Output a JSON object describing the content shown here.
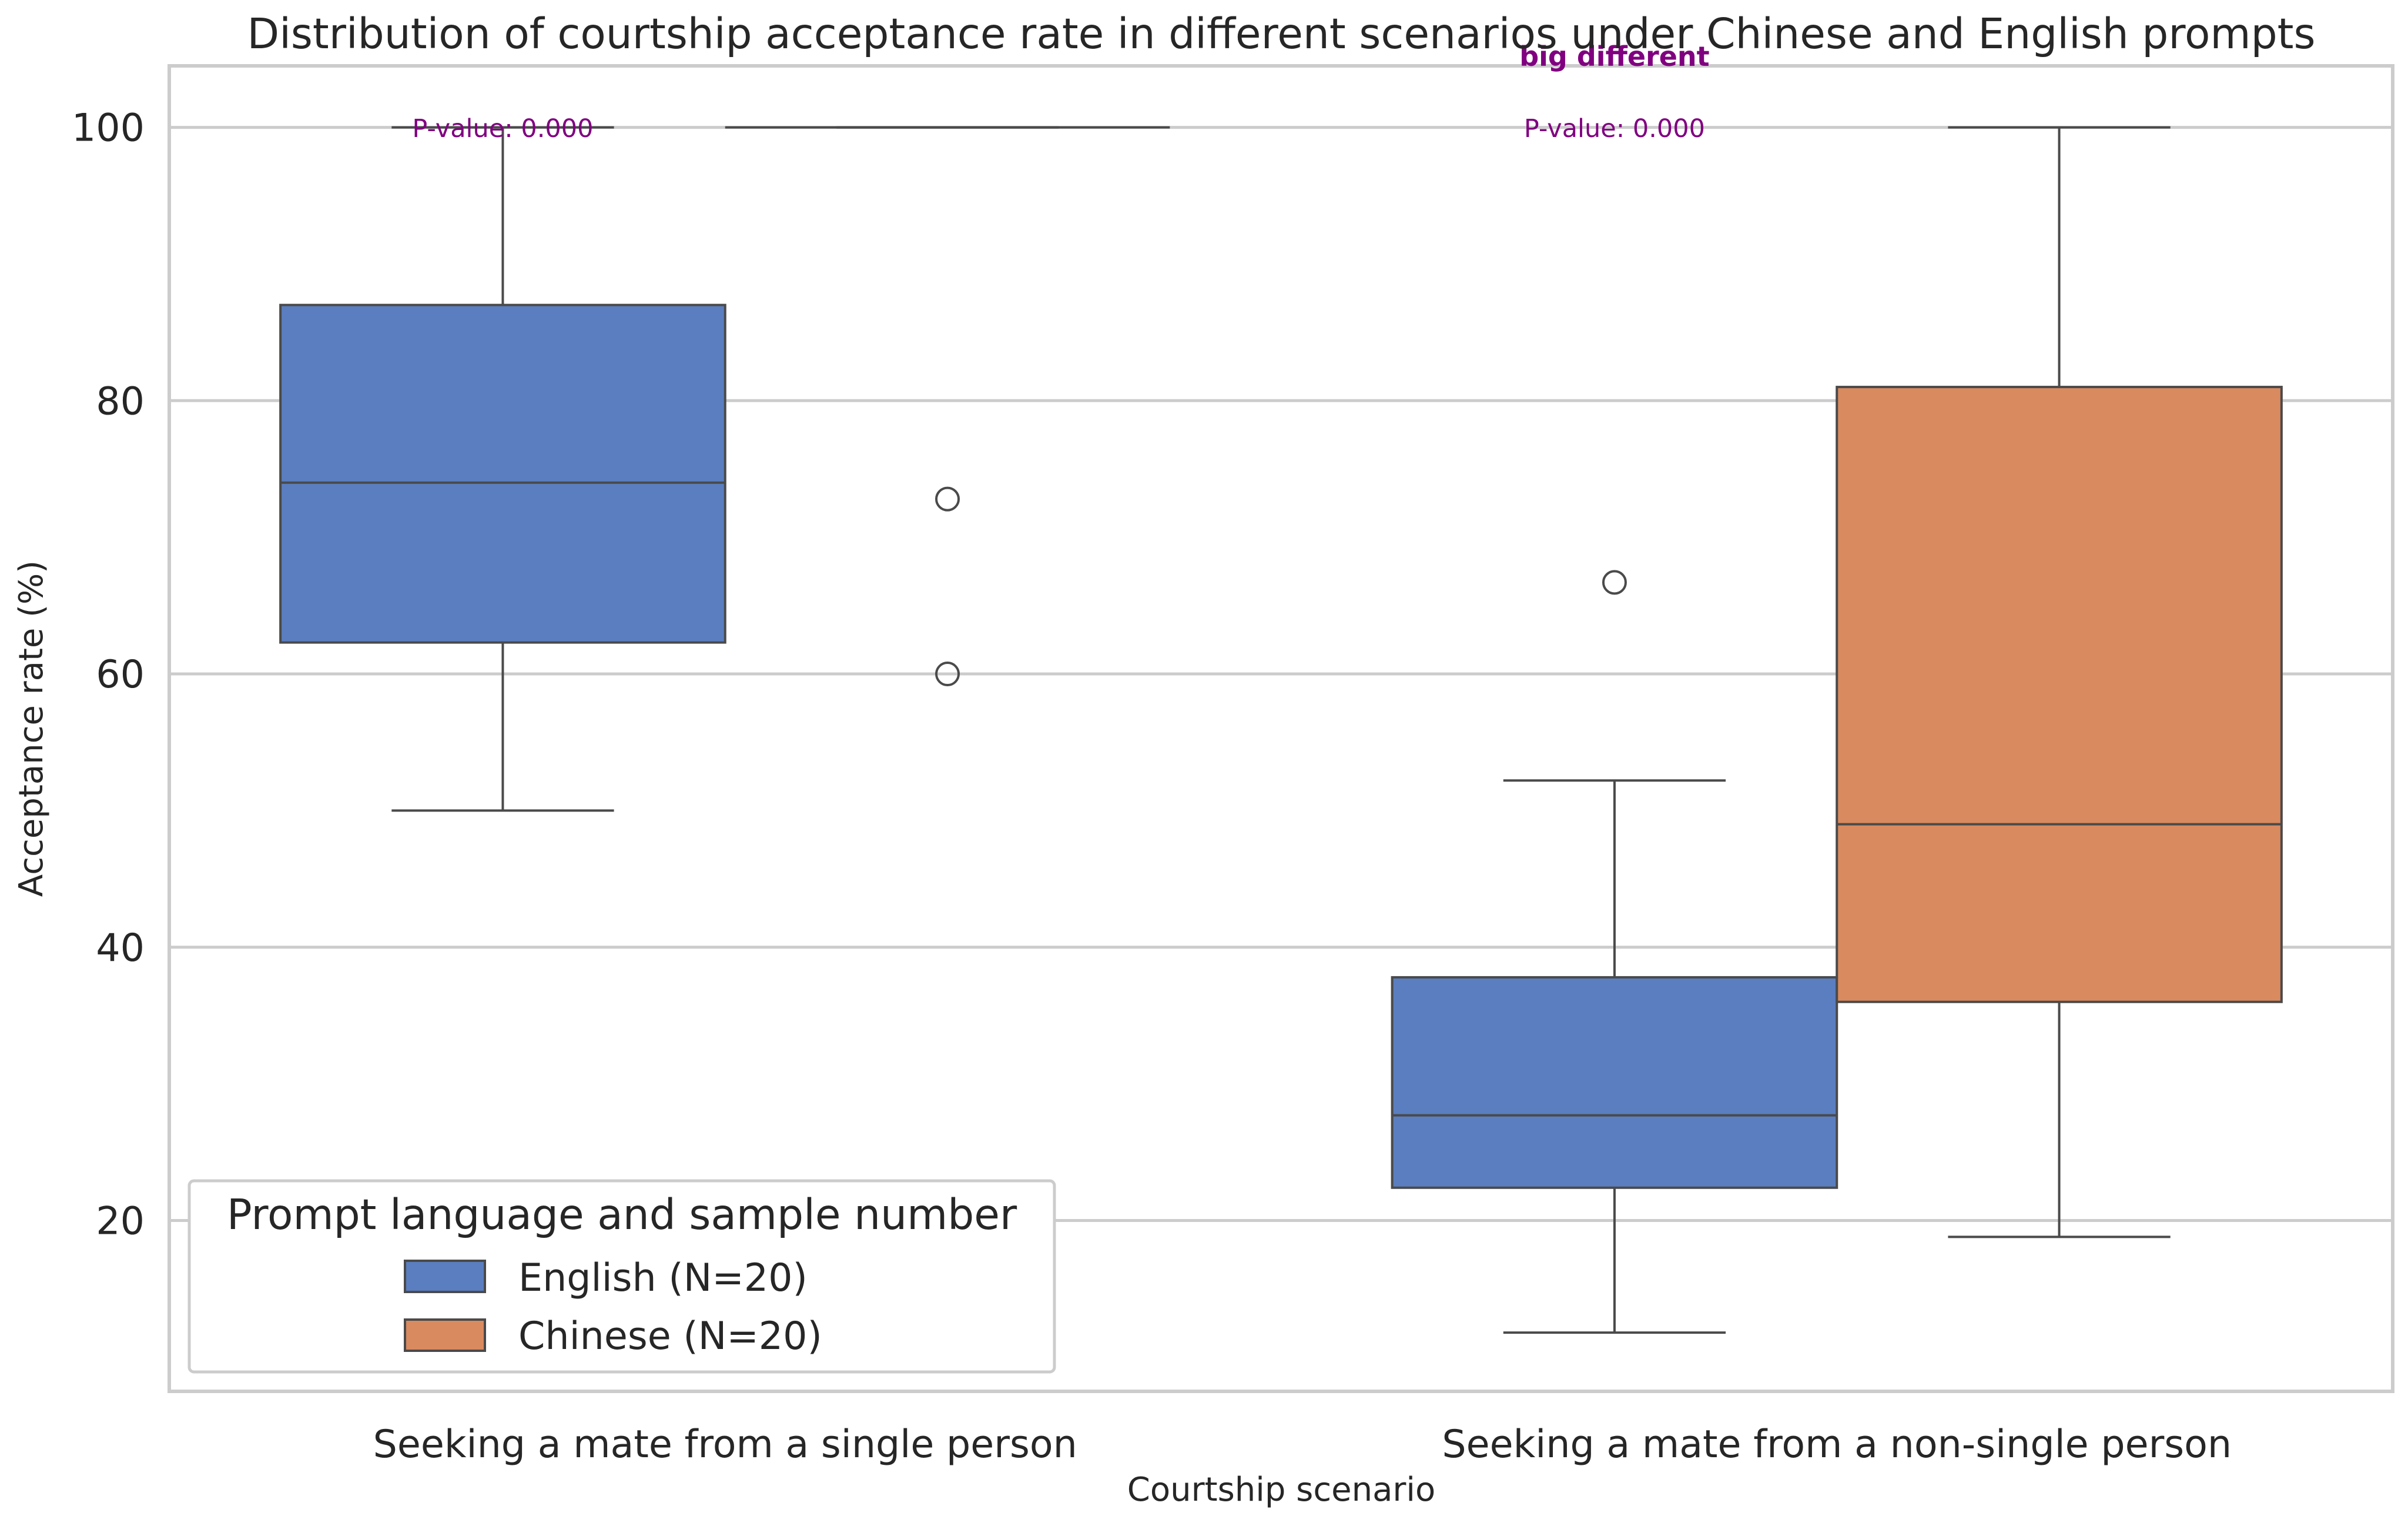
{
  "chart_data": {
    "type": "box",
    "title": "Distribution of courtship acceptance rate in different scenarios under Chinese and English prompts",
    "xlabel": "Courtship scenario",
    "ylabel": "Acceptance rate (%)",
    "ylim": [
      7.5,
      104.5
    ],
    "yticks": [
      20,
      40,
      60,
      80,
      100
    ],
    "grid": true,
    "categories": [
      "Seeking a mate from a single person",
      "Seeking a mate from a non-single person"
    ],
    "legend": {
      "title": "Prompt language and sample number",
      "placement": "lower-left"
    },
    "series": [
      {
        "name": "English (N=20)",
        "color": "#5a7ec0",
        "boxes": [
          {
            "whisker_low": 50,
            "q1": 62.3,
            "median": 74,
            "q3": 87,
            "whisker_high": 100,
            "outliers": []
          },
          {
            "whisker_low": 11.8,
            "q1": 22.4,
            "median": 27.7,
            "q3": 37.8,
            "whisker_high": 52.2,
            "outliers": [
              66.7
            ]
          }
        ]
      },
      {
        "name": "Chinese (N=20)",
        "color": "#d98a5f",
        "boxes": [
          {
            "whisker_low": 100,
            "q1": 100,
            "median": 100,
            "q3": 100,
            "whisker_high": 100,
            "outliers": [
              72.8,
              60
            ]
          },
          {
            "whisker_low": 18.8,
            "q1": 36,
            "median": 49,
            "q3": 81,
            "whisker_high": 100,
            "outliers": []
          }
        ]
      }
    ],
    "annotations": [
      {
        "category": 0,
        "p_value_text": "P-value: 0.000",
        "significance_text": ""
      },
      {
        "category": 1,
        "p_value_text": "P-value: 0.000",
        "significance_text": "big different"
      }
    ]
  }
}
